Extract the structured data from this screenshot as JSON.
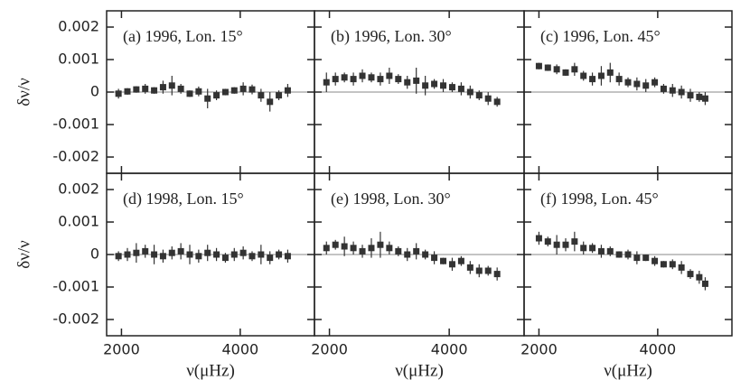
{
  "chart_data": [
    {
      "type": "scatter",
      "label": "(a) 1996, Lon. 15°",
      "ylabel": "δν/ν",
      "x": [
        1950,
        2100,
        2250,
        2400,
        2550,
        2700,
        2850,
        3000,
        3150,
        3300,
        3450,
        3600,
        3750,
        3900,
        4050,
        4200,
        4350,
        4500,
        4650,
        4800
      ],
      "values": [
        -5e-05,
        2e-05,
        8e-05,
        0.0001,
        5e-05,
        0.00015,
        0.0002,
        0.0001,
        -5e-05,
        2e-05,
        -0.0002,
        -0.0001,
        0,
        5e-05,
        0.0001,
        8e-05,
        -0.0001,
        -0.0003,
        -0.0001,
        5e-05
      ],
      "errors": [
        0.00015,
        0.0001,
        0.0001,
        0.00015,
        0.0001,
        0.0002,
        0.0003,
        0.00015,
        0.0001,
        0.00015,
        0.0003,
        0.00015,
        0.0001,
        0.0001,
        0.0002,
        0.00015,
        0.0002,
        0.0003,
        0.00015,
        0.0002
      ],
      "color": "#333333",
      "xlim": [
        1750,
        5250
      ],
      "ylim": [
        -0.0025,
        0.0025
      ],
      "xticks": [
        2000,
        4000
      ],
      "yticks": [
        0.002,
        0.001,
        0,
        -0.001,
        -0.002
      ]
    },
    {
      "type": "scatter",
      "label": "(b) 1996, Lon. 30°",
      "x": [
        1950,
        2100,
        2250,
        2400,
        2550,
        2700,
        2850,
        3000,
        3150,
        3300,
        3450,
        3600,
        3750,
        3900,
        4050,
        4200,
        4350,
        4500,
        4650,
        4800
      ],
      "values": [
        0.0003,
        0.0004,
        0.00045,
        0.0004,
        0.0005,
        0.00045,
        0.0004,
        0.0005,
        0.0004,
        0.0003,
        0.00035,
        0.0002,
        0.00025,
        0.0002,
        0.00015,
        0.0001,
        0,
        -0.0001,
        -0.0002,
        -0.0003
      ],
      "errors": [
        0.0003,
        0.0002,
        0.00015,
        0.0002,
        0.0002,
        0.00015,
        0.0002,
        0.00025,
        0.00015,
        0.0002,
        0.0004,
        0.0003,
        0.00015,
        0.0002,
        0.00015,
        0.0002,
        0.0002,
        0.00015,
        0.0002,
        0.00015
      ],
      "color": "#333333",
      "xlim": [
        1750,
        5250
      ],
      "ylim": [
        -0.0025,
        0.0025
      ],
      "xticks": [
        2000,
        4000
      ],
      "yticks": [
        0.002,
        0.001,
        0,
        -0.001,
        -0.002
      ]
    },
    {
      "type": "scatter",
      "label": "(c) 1996, Lon. 45°",
      "x": [
        2000,
        2150,
        2300,
        2450,
        2600,
        2750,
        2900,
        3050,
        3200,
        3350,
        3500,
        3650,
        3800,
        3950,
        4100,
        4250,
        4400,
        4550,
        4700,
        4800
      ],
      "values": [
        0.0008,
        0.00075,
        0.0007,
        0.0006,
        0.0007,
        0.0005,
        0.0004,
        0.0005,
        0.0006,
        0.0004,
        0.0003,
        0.00025,
        0.0002,
        0.0003,
        0.0001,
        5e-05,
        0,
        -0.0001,
        -0.00015,
        -0.0002
      ],
      "errors": [
        0.0001,
        0.0001,
        0.00015,
        0.0001,
        0.0002,
        0.00015,
        0.0002,
        0.0003,
        0.0003,
        0.0002,
        0.00015,
        0.0002,
        0.0002,
        0.00015,
        0.00015,
        0.0002,
        0.0002,
        0.0002,
        0.00015,
        0.0002
      ],
      "color": "#333333",
      "xlim": [
        1750,
        5250
      ],
      "ylim": [
        -0.0025,
        0.0025
      ],
      "xticks": [
        2000,
        4000
      ],
      "yticks": [
        0.002,
        0.001,
        0,
        -0.001,
        -0.002
      ]
    },
    {
      "type": "scatter",
      "label": "(d) 1998, Lon. 15°",
      "ylabel": "δν/ν",
      "xlabel": "ν(μHz)",
      "x": [
        1950,
        2100,
        2250,
        2400,
        2550,
        2700,
        2850,
        3000,
        3150,
        3300,
        3450,
        3600,
        3750,
        3900,
        4050,
        4200,
        4350,
        4500,
        4650,
        4800
      ],
      "values": [
        -5e-05,
        0,
        5e-05,
        0.0001,
        0,
        -5e-05,
        5e-05,
        0.0001,
        0,
        -5e-05,
        5e-05,
        0,
        -0.0001,
        0,
        5e-05,
        -5e-05,
        0,
        -0.0001,
        0,
        -5e-05
      ],
      "errors": [
        0.00015,
        0.0002,
        0.0003,
        0.0002,
        0.0003,
        0.0002,
        0.0002,
        0.00025,
        0.0003,
        0.0002,
        0.00025,
        0.0002,
        0.00015,
        0.0002,
        0.0002,
        0.00015,
        0.0003,
        0.0002,
        0.00015,
        0.0002
      ],
      "color": "#333333",
      "xlim": [
        1750,
        5250
      ],
      "ylim": [
        -0.0025,
        0.0025
      ],
      "xticks": [
        2000,
        4000
      ],
      "yticks": [
        0.002,
        0.001,
        0,
        -0.001,
        -0.002
      ]
    },
    {
      "type": "scatter",
      "label": "(e) 1998, Lon. 30°",
      "xlabel": "ν(μHz)",
      "x": [
        1950,
        2100,
        2250,
        2400,
        2550,
        2700,
        2850,
        3000,
        3150,
        3300,
        3450,
        3600,
        3750,
        3900,
        4050,
        4200,
        4350,
        4500,
        4650,
        4800
      ],
      "values": [
        0.0002,
        0.0003,
        0.00025,
        0.0002,
        0.0001,
        0.0002,
        0.0003,
        0.0002,
        0.0001,
        0,
        0.0001,
        0,
        -0.0001,
        -0.0002,
        -0.0003,
        -0.0002,
        -0.0004,
        -0.0005,
        -0.0005,
        -0.0006
      ],
      "errors": [
        0.0002,
        0.00015,
        0.0003,
        0.0002,
        0.0002,
        0.0003,
        0.0004,
        0.0002,
        0.00015,
        0.0002,
        0.00025,
        0.00015,
        0.0002,
        0.0001,
        0.0002,
        0.00015,
        0.0002,
        0.0002,
        0.00015,
        0.0002
      ],
      "color": "#333333",
      "xlim": [
        1750,
        5250
      ],
      "ylim": [
        -0.0025,
        0.0025
      ],
      "xticks": [
        2000,
        4000
      ],
      "yticks": [
        0.002,
        0.001,
        0,
        -0.001,
        -0.002
      ]
    },
    {
      "type": "scatter",
      "label": "(f) 1998, Lon. 45°",
      "xlabel": "ν(μHz)",
      "x": [
        2000,
        2150,
        2300,
        2450,
        2600,
        2750,
        2900,
        3050,
        3200,
        3350,
        3500,
        3650,
        3800,
        3950,
        4100,
        4250,
        4400,
        4550,
        4700,
        4800
      ],
      "values": [
        0.0005,
        0.0004,
        0.0003,
        0.0003,
        0.0004,
        0.0002,
        0.0002,
        0.0001,
        0.0001,
        0,
        0,
        -0.0001,
        -0.0001,
        -0.0002,
        -0.0003,
        -0.0003,
        -0.0004,
        -0.0006,
        -0.0007,
        -0.0009
      ],
      "errors": [
        0.0002,
        0.00015,
        0.0003,
        0.0002,
        0.0003,
        0.0002,
        0.00015,
        0.0002,
        0.00015,
        0.0001,
        0.00015,
        0.0002,
        0.0001,
        0.00015,
        0.0001,
        0.00015,
        0.0002,
        0.00015,
        0.0002,
        0.0002
      ],
      "color": "#333333",
      "xlim": [
        1750,
        5250
      ],
      "ylim": [
        -0.0025,
        0.0025
      ],
      "xticks": [
        2000,
        4000
      ],
      "yticks": [
        0.002,
        0.001,
        0,
        -0.001,
        -0.002
      ]
    }
  ]
}
